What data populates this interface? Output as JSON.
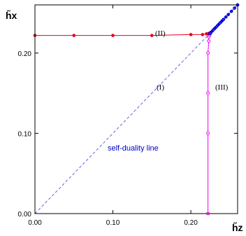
{
  "chart_data": {
    "type": "scatter",
    "xlabel": "h̃z",
    "ylabel": "h̃x",
    "xlim": [
      0,
      0.26
    ],
    "ylim": [
      0,
      0.26
    ],
    "x_ticks": [
      "0.00",
      "0.10",
      "0.20"
    ],
    "y_ticks": [
      "0.00",
      "0.10",
      "0.20"
    ],
    "grid": false,
    "annotations": [
      "(I)",
      "(II)",
      "(III)",
      "self-duality line"
    ],
    "colors": {
      "red": "#e8001c",
      "magenta": "#ee00ee",
      "blue": "#0000dd",
      "dashed": "#5555dd"
    },
    "series": [
      {
        "style": "line-markers",
        "color": "red",
        "x": [
          0.0,
          0.05,
          0.1,
          0.15,
          0.2,
          0.215,
          0.22,
          0.222,
          0.224
        ],
        "y": [
          0.222,
          0.222,
          0.222,
          0.222,
          0.223,
          0.223,
          0.224,
          0.224,
          0.225
        ]
      },
      {
        "style": "line-open-markers",
        "color": "magenta",
        "x": [
          0.222,
          0.222,
          0.222,
          0.222,
          0.223,
          0.223,
          0.224,
          0.225
        ],
        "y": [
          0.0,
          0.1,
          0.15,
          0.2,
          0.215,
          0.22,
          0.222,
          0.224
        ]
      },
      {
        "style": "line-markers",
        "color": "blue",
        "x": [
          0.224,
          0.226,
          0.228,
          0.23,
          0.232,
          0.234,
          0.236,
          0.238,
          0.24,
          0.242,
          0.245,
          0.248,
          0.252,
          0.256,
          0.26
        ],
        "y": [
          0.224,
          0.226,
          0.228,
          0.23,
          0.232,
          0.234,
          0.236,
          0.238,
          0.24,
          0.242,
          0.245,
          0.248,
          0.252,
          0.256,
          0.26
        ]
      },
      {
        "style": "dashed-line",
        "color": "dashed",
        "x": [
          0.0,
          0.26
        ],
        "y": [
          0.0,
          0.26
        ]
      }
    ]
  }
}
